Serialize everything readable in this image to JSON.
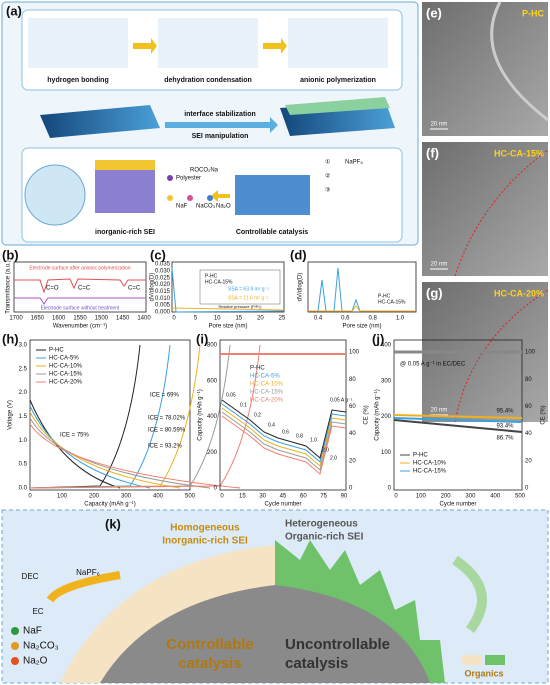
{
  "panel_a": {
    "label": "(a)",
    "steps": [
      "hydrogen bonding",
      "dehydration condensation",
      "anionic polymerization"
    ],
    "arrows": [
      "interface stabilization",
      "SEI manipulation"
    ],
    "legend": [
      "Polyester",
      "ROCO₂Na",
      "NaF",
      "NaCO₃",
      "Na₂O"
    ],
    "captions": [
      "inorganic-rich SEI",
      "Controllable catalysis"
    ],
    "salt": "NaPF₆",
    "numbers": [
      "①",
      "②",
      "③"
    ]
  },
  "panel_e": {
    "label": "(e)",
    "name": "P-HC",
    "scale": "20 nm"
  },
  "panel_f": {
    "label": "(f)",
    "name": "HC-CA-15%",
    "scale": "20 nm"
  },
  "panel_g": {
    "label": "(g)",
    "name": "HC-CA-20%",
    "scale": "20 nm"
  },
  "panel_b": {
    "label": "(b)",
    "ylabel": "Transmittance (a.u.)",
    "xlabel": "Wavenumber (cm⁻¹)",
    "xticks": [
      "1700",
      "1650",
      "1600",
      "1550",
      "1500",
      "1450",
      "1400"
    ],
    "top_note": "Electrode surface after anionic polymerization",
    "bottom_note": "Electrode surface without treatment",
    "peaks": [
      "C=O",
      "C=C",
      "C=C"
    ]
  },
  "panel_c": {
    "label": "(c)",
    "ylabel": "dV/dlog(D)",
    "xlabel": "Pore size (nm)",
    "xticks": [
      "0",
      "5",
      "10",
      "15",
      "20",
      "25"
    ],
    "yticks": [
      "0.000",
      "0.005",
      "0.010",
      "0.015",
      "0.020",
      "0.025",
      "0.030",
      "0.035"
    ],
    "legend": [
      "P-HC",
      "HC-CA-15%"
    ],
    "inset": [
      "SSA = 63.9 m² g⁻¹",
      "SSA = 11.6 m² g⁻¹"
    ],
    "inset_xlabel": "Relative pressure (P/P₀)"
  },
  "panel_d": {
    "label": "(d)",
    "ylabel": "dV/dlog(D)",
    "xlabel": "Pore size (nm)",
    "xticks": [
      "0.4",
      "0.6",
      "0.8",
      "1.0"
    ],
    "legend": [
      "P-HC",
      "HC-CA-15%"
    ]
  },
  "panel_h": {
    "label": "(h)",
    "ylabel": "Voltage (V)",
    "xlabel": "Capacity (mAh g⁻¹)",
    "yticks": [
      "0.0",
      "0.5",
      "1.0",
      "1.5",
      "2.0",
      "2.5",
      "3.0"
    ],
    "xticks": [
      "0",
      "100",
      "200",
      "300",
      "400",
      "500"
    ],
    "legend": [
      "P-HC",
      "HC-CA-5%",
      "HC-CA-10%",
      "HC-CA-15%",
      "HC-CA-20%"
    ],
    "ice": [
      "ICE = 69%",
      "ICE = 75%",
      "ICE = 78.02%",
      "ICE = 80.59%",
      "ICE = 93.2%"
    ]
  },
  "panel_i": {
    "label": "(i)",
    "ylabel": "Capacity (mAh g⁻¹)",
    "y2label": "CE (%)",
    "xlabel": "Cycle number",
    "yticks": [
      "0",
      "200",
      "400",
      "600",
      "800"
    ],
    "y2ticks": [
      "0",
      "20",
      "40",
      "60",
      "80",
      "100"
    ],
    "xticks": [
      "0",
      "15",
      "30",
      "45",
      "60",
      "75",
      "90"
    ],
    "legend": [
      "P-HC",
      "HC-CA-5%",
      "HC-CA-10%",
      "HC-CA-15%",
      "HC-CA-20%"
    ],
    "rates": [
      "0.05",
      "0.1",
      "0.2",
      "0.4",
      "0.6",
      "0.8",
      "1.0",
      "2.0",
      "2.0"
    ],
    "rate_unit": "0.05 A g⁻¹"
  },
  "panel_j": {
    "label": "(j)",
    "ylabel": "Capacity (mAh g⁻¹)",
    "y2label": "CE (%)",
    "xlabel": "Cycle number",
    "yticks": [
      "0",
      "100",
      "200",
      "300",
      "400"
    ],
    "y2ticks": [
      "0",
      "20",
      "40",
      "60",
      "80",
      "100"
    ],
    "xticks": [
      "0",
      "100",
      "200",
      "300",
      "400",
      "500"
    ],
    "condition": "@ 0.05 A g⁻¹ in EC/DEC",
    "legend": [
      "P-HC",
      "HC-CA-10%",
      "HC-CA-15%"
    ],
    "retention": [
      "95.4%",
      "93.4%",
      "86.7%"
    ]
  },
  "panel_k": {
    "label": "(k)",
    "left_title": [
      "Homogeneous",
      "Inorganic-rich SEI"
    ],
    "right_title": [
      "Heterogeneous",
      "Organic-rich  SEI"
    ],
    "molecules": [
      "DEC",
      "EC",
      "NaPF₆"
    ],
    "legend": [
      "NaF",
      "Na₂CO₃",
      "Na₂O"
    ],
    "left_caption": [
      "Controllable",
      "catalysis"
    ],
    "right_caption": [
      "Uncontrollable",
      "catalysis"
    ],
    "organics": "Organics"
  }
}
